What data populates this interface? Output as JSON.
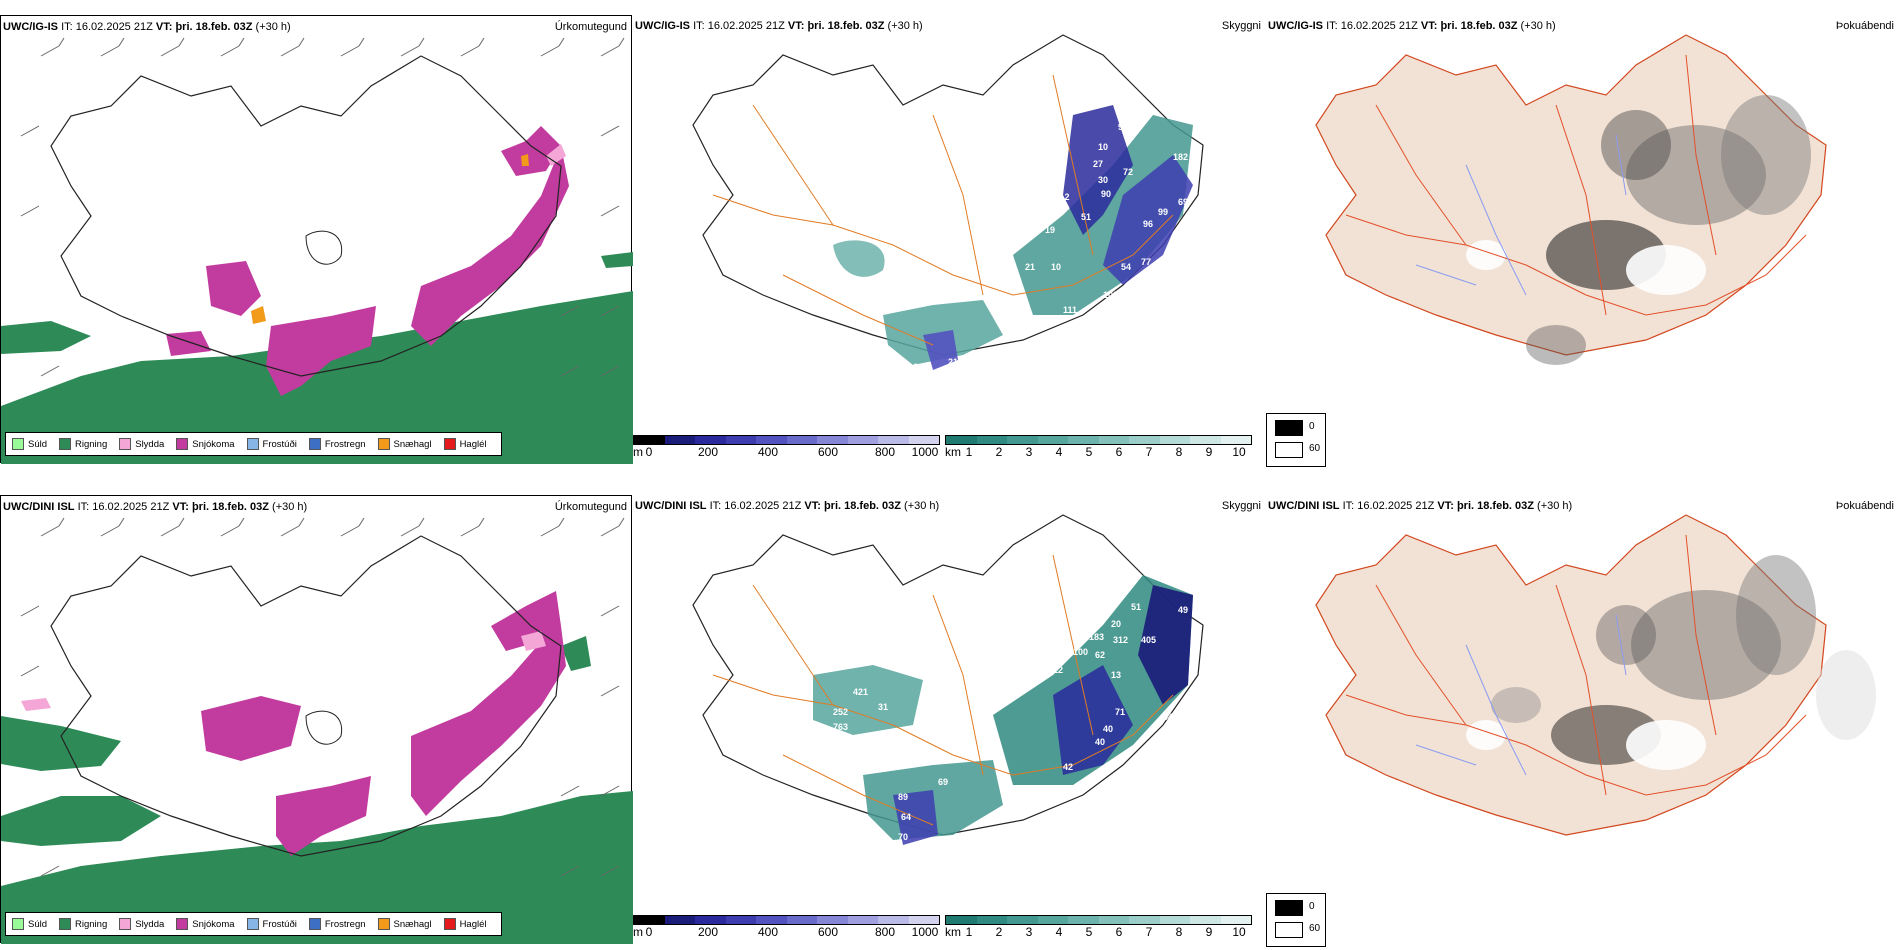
{
  "rows": [
    {
      "model": "UWC/IG-IS",
      "it_label": "IT:",
      "it_value": "16.02.2025 21Z",
      "vt_label": "VT:",
      "vt_value": "þri. 18.feb. 03Z",
      "lead": "(+30 h)"
    },
    {
      "model": "UWC/DINI ISL",
      "it_label": "IT:",
      "it_value": "16.02.2025 21Z",
      "vt_label": "VT:",
      "vt_value": "þri. 18.feb. 03Z",
      "lead": "(+30 h)"
    }
  ],
  "panel_labels": {
    "precip": "Úrkomutegund",
    "ceiling": "Skyggni",
    "fog": "Þokuábendi"
  },
  "precip_legend": [
    {
      "label": "Súld",
      "color": "#98fb98"
    },
    {
      "label": "Rigning",
      "color": "#2e8b57"
    },
    {
      "label": "Slydda",
      "color": "#f4a6d7"
    },
    {
      "label": "Snjókoma",
      "color": "#c23b9e"
    },
    {
      "label": "Frostúði",
      "color": "#87b5e8"
    },
    {
      "label": "Frostregn",
      "color": "#3d6fc4"
    },
    {
      "label": "Snæhagl",
      "color": "#f29a1a"
    },
    {
      "label": "Haglél",
      "color": "#e41a1c"
    }
  ],
  "ceiling_bar": {
    "unit": "m",
    "ticks": [
      "0",
      "200",
      "400",
      "600",
      "800",
      "1000"
    ],
    "colors": [
      "#000000",
      "#1b1b7a",
      "#2a2a9c",
      "#3d3db0",
      "#5252c0",
      "#6a6acb",
      "#8686d6",
      "#a0a0e0",
      "#babae8",
      "#d3d3f0"
    ]
  },
  "visibility_bar": {
    "unit": "km",
    "ticks": [
      "1",
      "2",
      "3",
      "4",
      "5",
      "6",
      "7",
      "8",
      "9",
      "10"
    ],
    "colors": [
      "#1f7a70",
      "#2f8a80",
      "#43988f",
      "#57a69e",
      "#6db3ad",
      "#84c1bb",
      "#9ccec9",
      "#b4dbd7",
      "#cce7e4",
      "#e3f2f1"
    ]
  },
  "fog_legend": {
    "low": "0",
    "high": "60"
  },
  "ceiling_values_top": [
    "222",
    "92",
    "10",
    "72",
    "182",
    "27",
    "30",
    "90",
    "99",
    "69",
    "96",
    "112",
    "19",
    "51",
    "54",
    "77",
    "21",
    "10",
    "102",
    "111",
    "10",
    "166",
    "213",
    "89"
  ],
  "ceiling_values_bottom": [
    "50",
    "69",
    "51",
    "49",
    "20",
    "312",
    "405",
    "100",
    "183",
    "62",
    "13",
    "12",
    "54",
    "421",
    "87",
    "252",
    "31",
    "763",
    "38",
    "71",
    "40",
    "40",
    "42",
    "27",
    "97",
    "69",
    "89",
    "64",
    "70"
  ]
}
